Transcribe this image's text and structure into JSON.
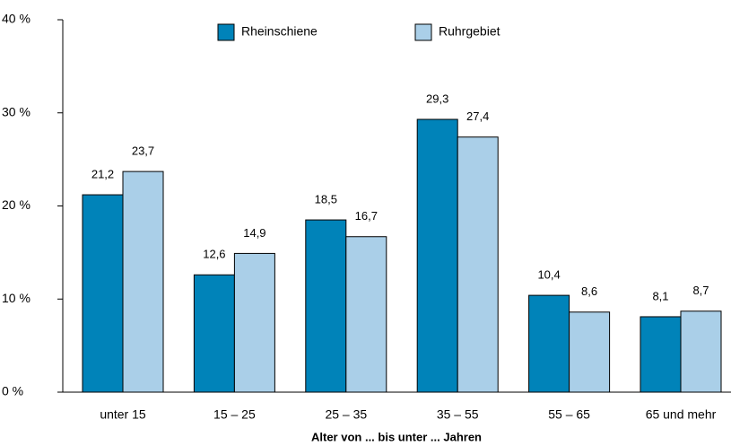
{
  "chart_data": {
    "type": "bar",
    "xlabel": "Alter von ... bis unter ... Jahren",
    "categories": [
      "unter 15",
      "15 – 25",
      "25 – 35",
      "35 – 55",
      "55 – 65",
      "65 und mehr"
    ],
    "series": [
      {
        "name": "Rheinschiene",
        "color": "#0083b9",
        "values": [
          21.2,
          12.6,
          18.5,
          29.3,
          10.4,
          8.1
        ],
        "value_labels": [
          "21,2",
          "12,6",
          "18,5",
          "29,3",
          "10,4",
          "8,1"
        ]
      },
      {
        "name": "Ruhrgebiet",
        "color": "#aacfe8",
        "values": [
          23.7,
          14.9,
          16.7,
          27.4,
          8.6,
          8.7
        ],
        "value_labels": [
          "23,7",
          "14,9",
          "16,7",
          "27,4",
          "8,6",
          "8,7"
        ]
      }
    ],
    "ylim": [
      0,
      40
    ],
    "yticks": [
      {
        "value": 0,
        "label": "0 %"
      },
      {
        "value": 10,
        "label": "10 %"
      },
      {
        "value": 20,
        "label": "20 %"
      },
      {
        "value": 30,
        "label": "30 %"
      },
      {
        "value": 40,
        "label": "40 %"
      }
    ],
    "legend": "top"
  }
}
